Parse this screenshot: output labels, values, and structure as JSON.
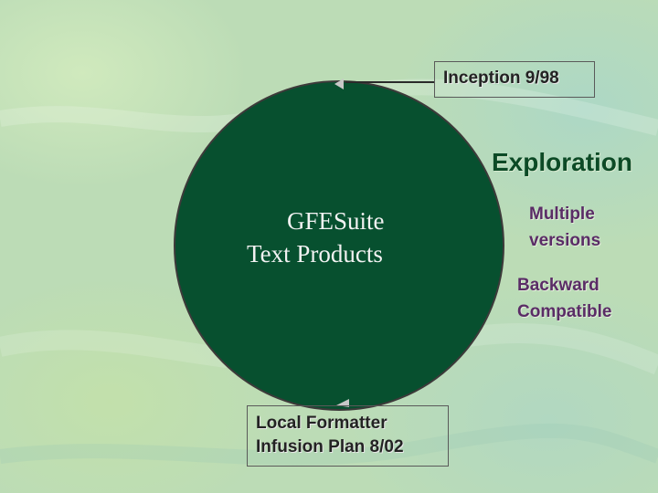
{
  "diagram": {
    "center": {
      "line1": "GFESuite",
      "line2": "Text Products"
    },
    "inception": "Inception 9/98",
    "exploration": "Exploration",
    "multiple": {
      "line1": "Multiple",
      "line2": "versions"
    },
    "backward": {
      "line1": "Backward",
      "line2": "Compatible"
    },
    "local": {
      "line1": "Local Formatter",
      "line2": "Infusion Plan 8/02"
    }
  },
  "colors": {
    "circle_fill": "#07502f",
    "exploration_text": "#0c4a26",
    "purple_text": "#5a2c66"
  }
}
